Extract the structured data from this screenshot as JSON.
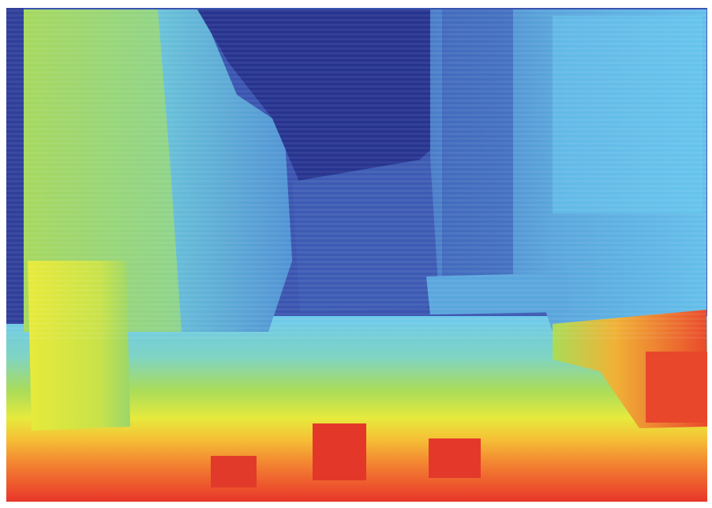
{
  "image": {
    "kind": "depth-map",
    "colormap": "jet",
    "palette": {
      "far": "#27348f",
      "deep_blue": "#3a55b0",
      "mid_blue": "#4f86d4",
      "light_blue": "#62c1ec",
      "cyan": "#6fd2e6",
      "green": "#8ed86a",
      "yellow": "#eaea3a",
      "orange": "#f6a533",
      "red": "#e8352a",
      "frame": "#ffffff"
    }
  }
}
